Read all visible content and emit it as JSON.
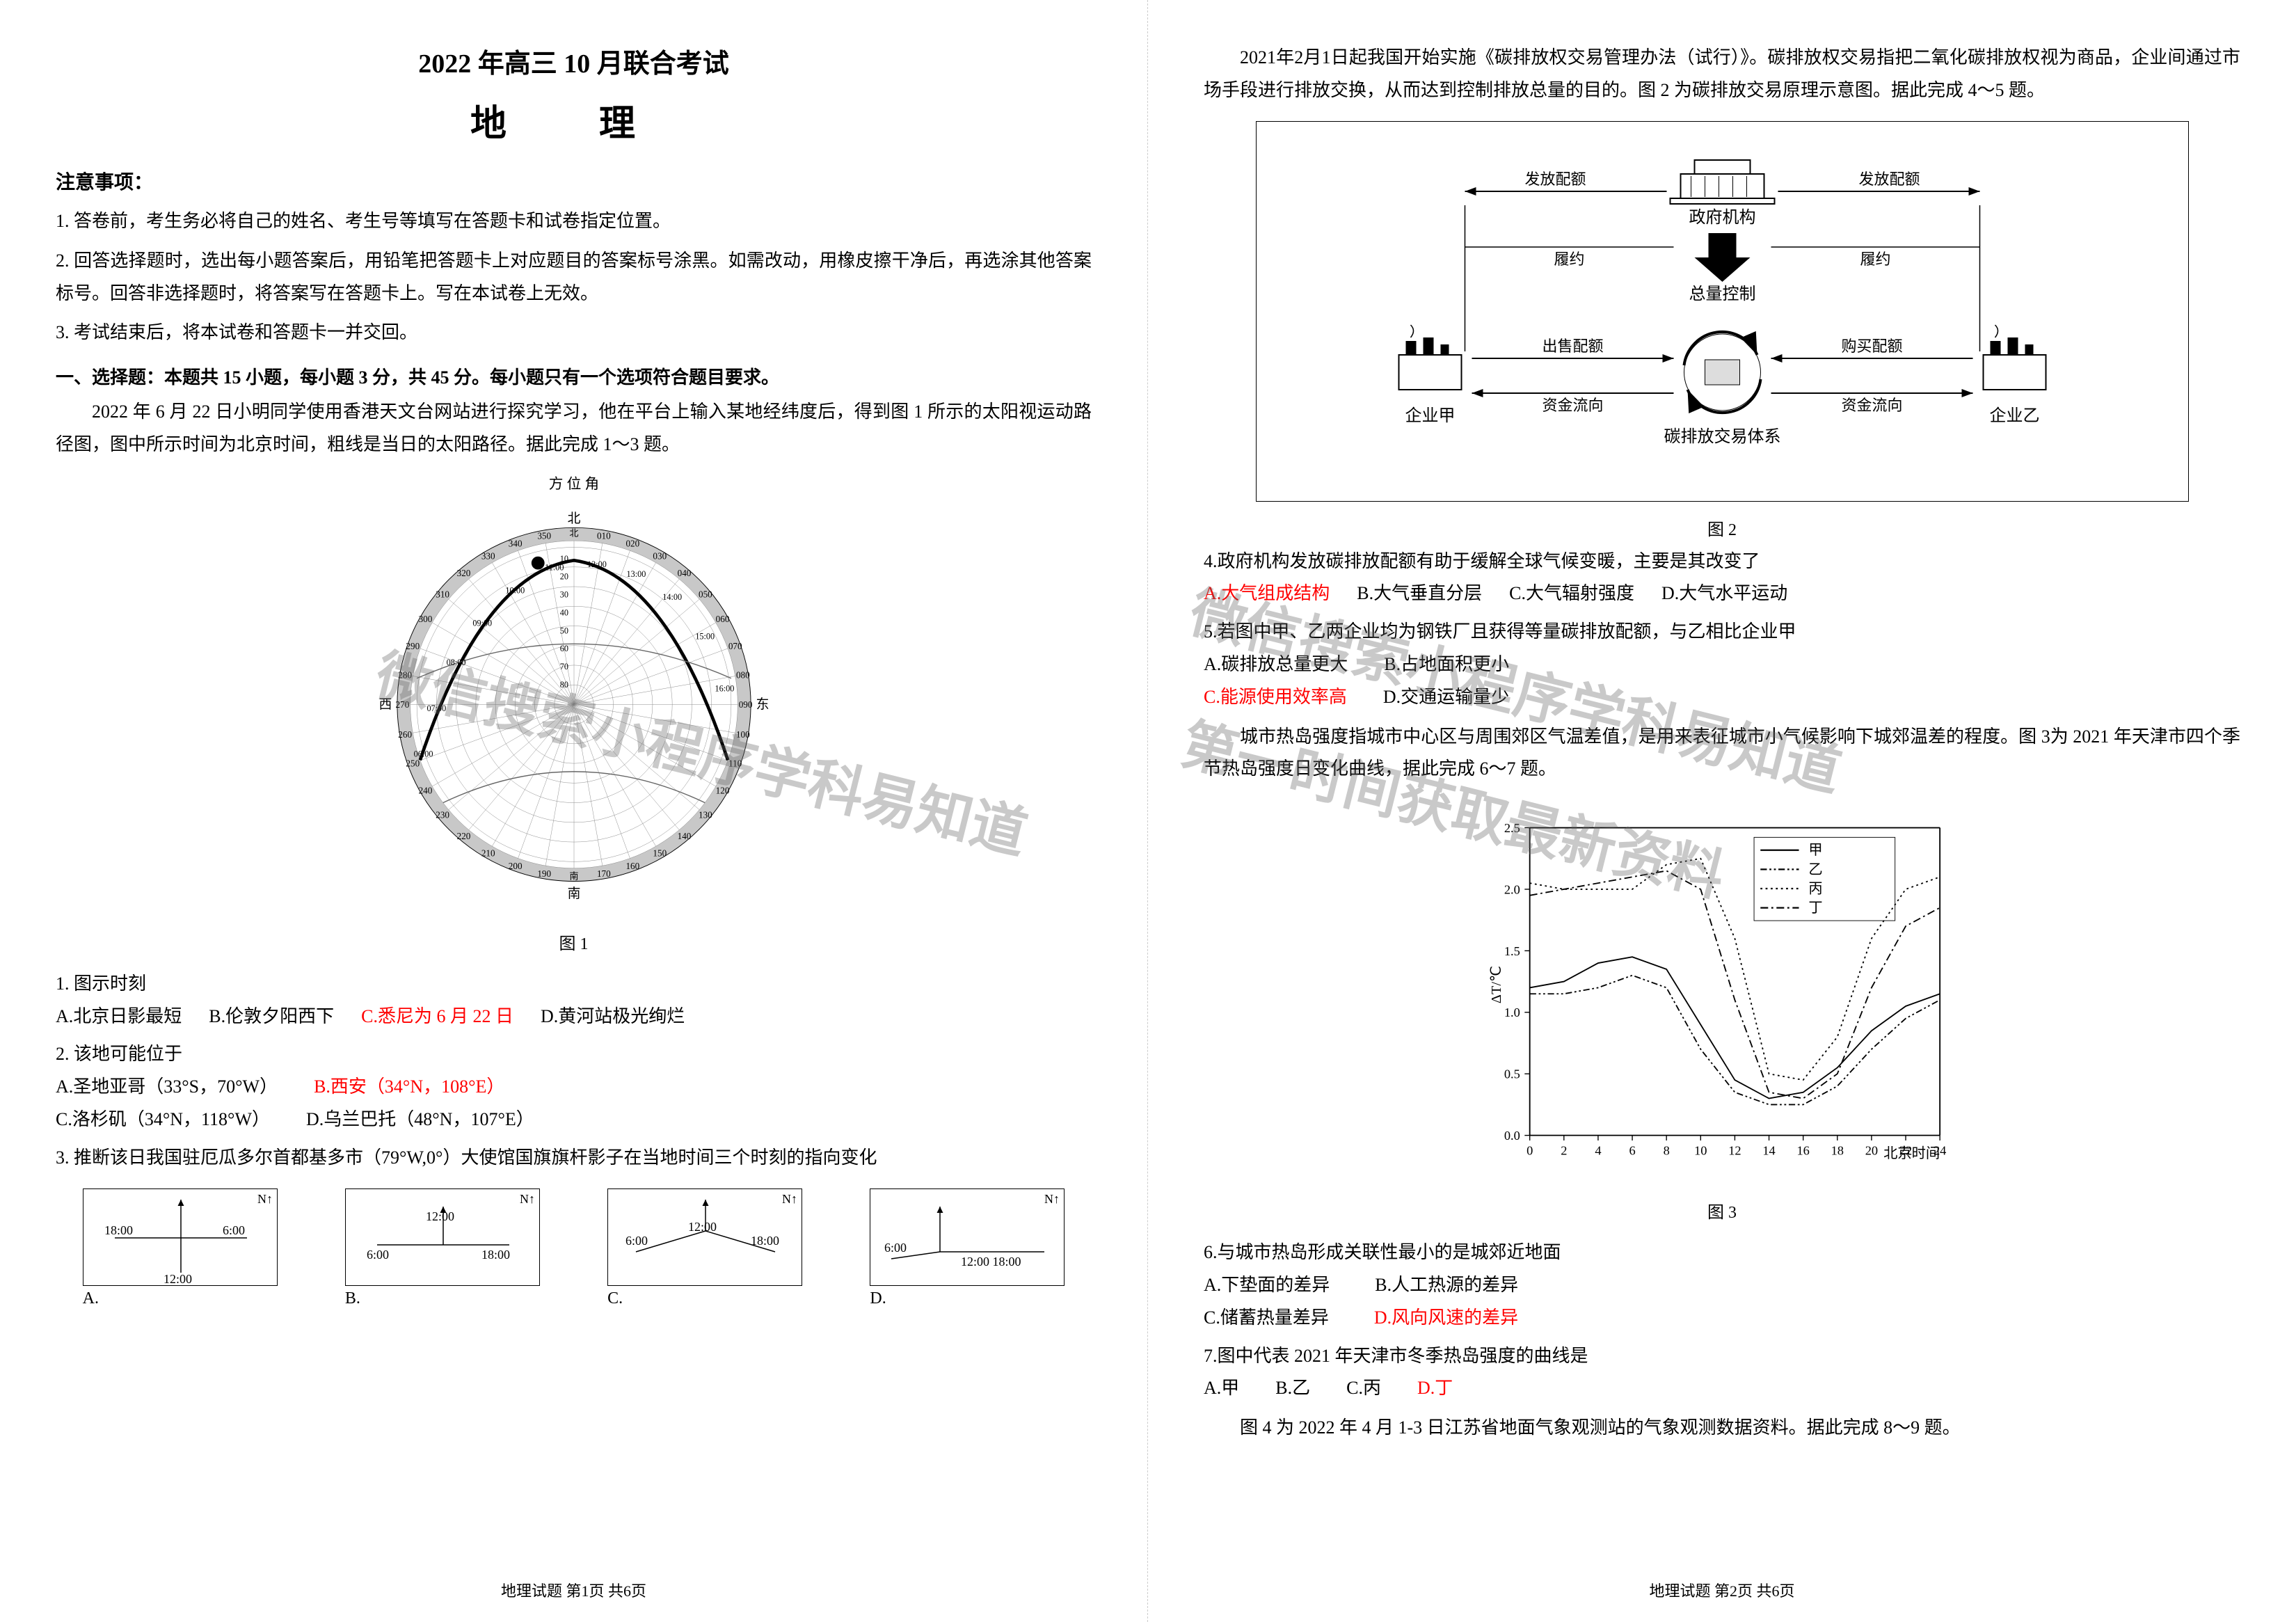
{
  "header": {
    "title_main": "2022 年高三 10 月联合考试",
    "title_subject": "地 理"
  },
  "instructions": {
    "header": "注意事项：",
    "items": [
      "1. 答卷前，考生务必将自己的姓名、考生号等填写在答题卡和试卷指定位置。",
      "2. 回答选择题时，选出每小题答案后，用铅笔把答题卡上对应题目的答案标号涂黑。如需改动，用橡皮擦干净后，再选涂其他答案标号。回答非选择题时，将答案写在答题卡上。写在本试卷上无效。",
      "3. 考试结束后，将本试卷和答题卡一并交回。"
    ]
  },
  "section1": {
    "header": "一、选择题：本题共 15 小题，每小题 3 分，共 45 分。每小题只有一个选项符合题目要求。",
    "passage1": "2022 年 6 月 22 日小明同学使用香港天文台网站进行探究学习，他在平台上输入某地经纬度后，得到图 1 所示的太阳视运动路径图，图中所示时间为北京时间，粗线是当日的太阳路径。据此完成 1～3 题。"
  },
  "polar_chart": {
    "type": "polar",
    "title_top": "方 位 角",
    "north_label": "北",
    "south_label": "南",
    "east_label": "东",
    "west_label": "西",
    "azimuth_ticks": [
      "010",
      "020",
      "030",
      "040",
      "050",
      "060",
      "070",
      "080",
      "090",
      "100",
      "110",
      "120",
      "130",
      "140",
      "150",
      "160",
      "170",
      "南",
      "190",
      "200",
      "210",
      "220",
      "230",
      "240",
      "250",
      "260",
      "270",
      "280",
      "290",
      "300",
      "310",
      "320",
      "330",
      "340",
      "350"
    ],
    "radial_labels": [
      "10",
      "20",
      "30",
      "40",
      "50",
      "60",
      "70",
      "80",
      "北"
    ],
    "time_labels": [
      "06:00",
      "07:00",
      "08:00",
      "09:00",
      "10:00",
      "11:00",
      "12:00",
      "13:00",
      "14:00",
      "15:00",
      "16:00"
    ],
    "caption": "图 1",
    "colors": {
      "ring_fill": "#c8c8c8",
      "grid": "#888888",
      "sun_path": "#000000",
      "background": "#ffffff",
      "text": "#000000"
    },
    "font_size": 14,
    "caption_size": 24
  },
  "questions_left": {
    "q1": {
      "stem": "1. 图示时刻",
      "options": [
        "A.北京日影最短",
        "B.伦敦夕阳西下",
        "C.悉尼为 6 月 22 日",
        "D.黄河站极光绚烂"
      ],
      "answer_index": 2
    },
    "q2": {
      "stem": "2. 该地可能位于",
      "options": [
        "A.圣地亚哥（33°S，70°W）",
        "B.西安（34°N，108°E）",
        "C.洛杉矶（34°N，118°W）",
        "D.乌兰巴托（48°N，107°E）"
      ],
      "answer_index": 1
    },
    "q3": {
      "stem": "3. 推断该日我国驻厄瓜多尔首都基多市（79°W,0°）大使馆国旗旗杆影子在当地时间三个时刻的指向变化"
    }
  },
  "compass_diagrams": {
    "labels": [
      "A.",
      "B.",
      "C.",
      "D."
    ],
    "north_symbol": "N↑",
    "times_a": [
      "18:00",
      "6:00",
      "12:00"
    ],
    "times_b": [
      "12:00",
      "6:00",
      "18:00"
    ],
    "times_c": [
      "6:00",
      "12:00",
      "18:00"
    ],
    "times_d": [
      "6:00",
      "12:00",
      "18:00"
    ],
    "border_color": "#000000",
    "font_size": 20
  },
  "footer_left": "地理试题   第1页 共6页",
  "page_right": {
    "passage2": "2021年2月1日起我国开始实施《碳排放权交易管理办法（试行）》。碳排放权交易指把二氧化碳排放权视为商品，企业间通过市场手段进行排放交换，从而达到控制排放总量的目的。图 2 为碳排放交易原理示意图。据此完成 4～5 题。"
  },
  "flow_diagram": {
    "type": "flowchart",
    "nodes": {
      "gov": "政府机构",
      "control": "总量控制",
      "system": "碳排放交易体系",
      "ent_a": "企业甲",
      "ent_b": "企业乙"
    },
    "edges": {
      "quota_left": "发放配额",
      "quota_right": "发放配额",
      "perform_left": "履约",
      "perform_right": "履约",
      "sell": "出售配额",
      "buy": "购买配额",
      "money_left": "资金流向",
      "money_right": "资金流向"
    },
    "caption": "图 2",
    "colors": {
      "border": "#000000",
      "arrow": "#000000",
      "text": "#000000",
      "building_fill": "#ffffff"
    },
    "font_size": 24,
    "border_width": 1
  },
  "questions_right": {
    "q4": {
      "stem": "4.政府机构发放碳排放配额有助于缓解全球气候变暖，主要是其改变了",
      "options": [
        "A.大气组成结构",
        "B.大气垂直分层",
        "C.大气辐射强度",
        "D.大气水平运动"
      ],
      "answer_index": 0
    },
    "q5": {
      "stem": "5.若图中甲、乙两企业均为钢铁厂且获得等量碳排放配额，与乙相比企业甲",
      "options": [
        "A.碳排放总量更大",
        "B.占地面积更小",
        "C.能源使用效率高",
        "D.交通运输量少"
      ],
      "answer_index": 2
    },
    "passage3": "城市热岛强度指城市中心区与周围郊区气温差值，是用来表征城市小气候影响下城郊温差的程度。图 3为 2021 年天津市四个季节热岛强度日变化曲线，据此完成 6～7 题。"
  },
  "line_chart": {
    "type": "line",
    "caption": "图 3",
    "xlabel": "北京时间",
    "ylabel": "ΔT/℃",
    "xlim": [
      0,
      24
    ],
    "ylim": [
      0.0,
      2.5
    ],
    "xtick_step": 2,
    "ytick_step": 0.5,
    "xticks": [
      0,
      2,
      4,
      6,
      8,
      10,
      12,
      14,
      16,
      18,
      20,
      22,
      24
    ],
    "yticks": [
      0.0,
      0.5,
      1.0,
      1.5,
      2.0,
      2.5
    ],
    "legend": [
      "甲",
      "乙",
      "丙",
      "丁"
    ],
    "legend_styles": [
      "solid",
      "dash-dot-dot",
      "dotted",
      "dash-dot"
    ],
    "series": {
      "jia": {
        "label": "甲",
        "style": "solid",
        "x": [
          0,
          2,
          4,
          6,
          8,
          10,
          12,
          14,
          16,
          18,
          20,
          22,
          24
        ],
        "y": [
          1.2,
          1.25,
          1.4,
          1.45,
          1.35,
          0.9,
          0.45,
          0.3,
          0.35,
          0.55,
          0.85,
          1.05,
          1.15
        ]
      },
      "yi": {
        "label": "乙",
        "style": "dash-dot-dot",
        "x": [
          0,
          2,
          4,
          6,
          8,
          10,
          12,
          14,
          16,
          18,
          20,
          22,
          24
        ],
        "y": [
          1.15,
          1.15,
          1.2,
          1.3,
          1.2,
          0.7,
          0.35,
          0.25,
          0.25,
          0.4,
          0.7,
          0.95,
          1.1
        ]
      },
      "bing": {
        "label": "丙",
        "style": "dotted",
        "x": [
          0,
          2,
          4,
          6,
          8,
          10,
          12,
          14,
          16,
          18,
          20,
          22,
          24
        ],
        "y": [
          2.05,
          2.0,
          2.0,
          2.0,
          2.2,
          2.25,
          1.6,
          0.5,
          0.45,
          0.8,
          1.6,
          2.0,
          2.1
        ]
      },
      "ding": {
        "label": "丁",
        "style": "dash-dot",
        "x": [
          0,
          2,
          4,
          6,
          8,
          10,
          12,
          14,
          16,
          18,
          20,
          22,
          24
        ],
        "y": [
          1.95,
          2.0,
          2.05,
          2.1,
          2.15,
          2.0,
          1.1,
          0.35,
          0.3,
          0.5,
          1.2,
          1.7,
          1.85
        ]
      }
    },
    "colors": {
      "line": "#000000",
      "axis": "#000000",
      "background": "#ffffff",
      "text": "#000000"
    },
    "line_width": 2,
    "font_size": 18
  },
  "questions_right2": {
    "q6": {
      "stem": "6.与城市热岛形成关联性最小的是城郊近地面",
      "options": [
        "A.下垫面的差异",
        "B.人工热源的差异",
        "C.储蓄热量差异",
        "D.风向风速的差异"
      ],
      "answer_index": 3
    },
    "q7": {
      "stem": "7.图中代表 2021 年天津市冬季热岛强度的曲线是",
      "options": [
        "A.甲",
        "B.乙",
        "C.丙",
        "D.丁"
      ],
      "answer_index": 3
    },
    "passage4": "图 4 为 2022 年 4 月 1-3 日江苏省地面气象观测站的气象观测数据资料。据此完成 8～9 题。"
  },
  "footer_right": "地理试题   第2页 共6页",
  "watermarks": {
    "wm1": "微信搜索小程序学科易知道",
    "wm2": "第一时间获取最新资料"
  }
}
